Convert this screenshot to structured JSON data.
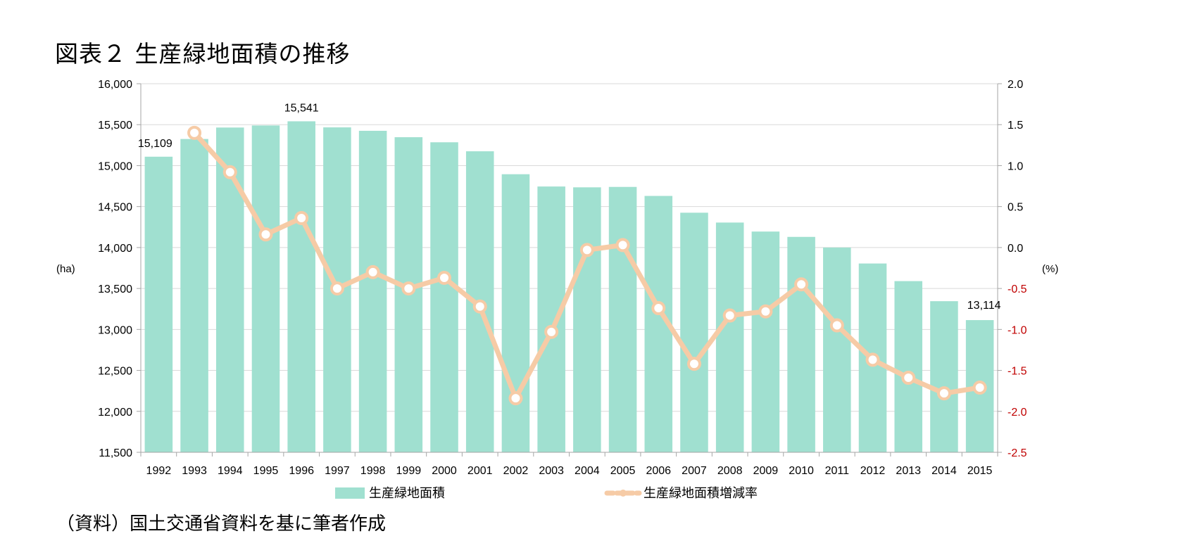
{
  "title": "図表２ 生産緑地面積の推移",
  "source": "（資料）国土交通省資料を基に筆者作成",
  "chart_data": {
    "type": "bar+line",
    "categories": [
      "1992",
      "1993",
      "1994",
      "1995",
      "1996",
      "1997",
      "1998",
      "1999",
      "2000",
      "2001",
      "2002",
      "2003",
      "2004",
      "2005",
      "2006",
      "2007",
      "2008",
      "2009",
      "2010",
      "2011",
      "2012",
      "2013",
      "2014",
      "2015"
    ],
    "series": [
      {
        "name": "生産緑地面積",
        "type": "bar",
        "axis": "left",
        "color": "#a0e0d0",
        "values": [
          15109,
          15325,
          15465,
          15490,
          15541,
          15467,
          15425,
          15347,
          15285,
          15175,
          14895,
          14745,
          14735,
          14740,
          14630,
          14425,
          14305,
          14195,
          14130,
          14000,
          13805,
          13590,
          13345,
          13114
        ]
      },
      {
        "name": "生産緑地面積増減率",
        "type": "line",
        "axis": "right",
        "color": "#f6cba6",
        "values": [
          null,
          1.4,
          0.92,
          0.16,
          0.36,
          -0.5,
          -0.3,
          -0.5,
          -0.37,
          -0.72,
          -1.84,
          -1.03,
          -0.03,
          0.03,
          -0.74,
          -1.42,
          -0.83,
          -0.78,
          -0.45,
          -0.95,
          -1.37,
          -1.59,
          -1.78,
          -1.71
        ]
      }
    ],
    "left_axis": {
      "unit": "(ha)",
      "min": 11500,
      "max": 16000,
      "step": 500,
      "ticks": [
        "11,500",
        "12,000",
        "12,500",
        "13,000",
        "13,500",
        "14,000",
        "14,500",
        "15,000",
        "15,500",
        "16,000"
      ]
    },
    "right_axis": {
      "unit": "(%)",
      "min": -2.5,
      "max": 2.0,
      "step": 0.5,
      "ticks": [
        "-2.5",
        "-2.0",
        "-1.5",
        "-1.0",
        "-0.5",
        "0.0",
        "0.5",
        "1.0",
        "1.5",
        "2.0"
      ],
      "negative_color": "#c00000"
    },
    "data_labels": [
      {
        "index": 0,
        "text": "15,109"
      },
      {
        "index": 4,
        "text": "15,541"
      },
      {
        "index": 23,
        "text": "13,114"
      }
    ],
    "grid": true,
    "legend": "bottom"
  }
}
